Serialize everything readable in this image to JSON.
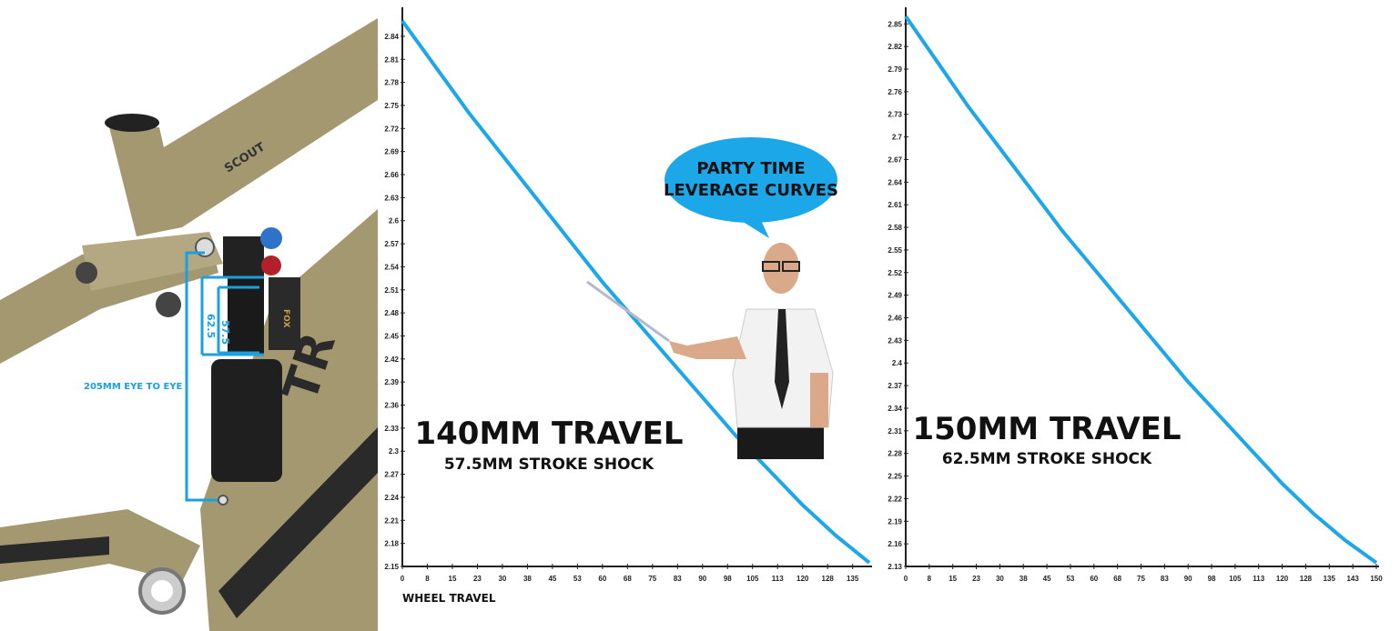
{
  "frame": {
    "eye_to_eye_label": "205MM EYE TO EYE",
    "stroke_long_label": "62.5",
    "stroke_short_label": "57.5",
    "downtube_text": "TR",
    "toptube_text": "SCOUT",
    "shock_brand": "FOX",
    "frame_color": "#a39870",
    "accent_color": "#1a9fe0"
  },
  "callout": {
    "line1": "PARTY TIME",
    "line2": "LEVERAGE CURVES",
    "bubble_color": "#1ba7e8"
  },
  "chart_data": [
    {
      "type": "line",
      "headline": "140MM TRAVEL",
      "subheadline": "57.5MM STROKE SHOCK",
      "xlabel": "WHEEL TRAVEL",
      "ylabel": "",
      "xlim": [
        0,
        140
      ],
      "ylim": [
        2.15,
        2.86
      ],
      "x_ticks": [
        "0",
        "8",
        "15",
        "23",
        "30",
        "38",
        "45",
        "53",
        "60",
        "68",
        "75",
        "83",
        "90",
        "98",
        "105",
        "113",
        "120",
        "128",
        "135"
      ],
      "y_ticks": [
        "2.84",
        "2.81",
        "2.78",
        "2.75",
        "2.72",
        "2.69",
        "2.66",
        "2.63",
        "2.6",
        "2.57",
        "2.54",
        "2.51",
        "2.48",
        "2.45",
        "2.42",
        "2.39",
        "2.36",
        "2.33",
        "2.3",
        "2.27",
        "2.24",
        "2.21",
        "2.18",
        "2.15"
      ],
      "x": [
        0,
        10,
        20,
        30,
        40,
        50,
        60,
        70,
        80,
        90,
        100,
        110,
        120,
        130,
        140
      ],
      "y": [
        2.86,
        2.8,
        2.74,
        2.685,
        2.63,
        2.575,
        2.52,
        2.47,
        2.42,
        2.37,
        2.32,
        2.275,
        2.23,
        2.19,
        2.155
      ],
      "line_color": "#1ba7e8",
      "grid": false
    },
    {
      "type": "line",
      "headline": "150MM TRAVEL",
      "subheadline": "62.5MM STROKE SHOCK",
      "xlabel": "",
      "ylabel": "",
      "xlim": [
        0,
        150
      ],
      "ylim": [
        2.13,
        2.86
      ],
      "x_ticks": [
        "0",
        "8",
        "15",
        "23",
        "30",
        "38",
        "45",
        "53",
        "60",
        "68",
        "75",
        "83",
        "90",
        "98",
        "105",
        "113",
        "120",
        "128",
        "135",
        "143",
        "150"
      ],
      "y_ticks": [
        "2.85",
        "2.82",
        "2.79",
        "2.76",
        "2.73",
        "2.7",
        "2.67",
        "2.64",
        "2.61",
        "2.58",
        "2.55",
        "2.52",
        "2.49",
        "2.46",
        "2.43",
        "2.4",
        "2.37",
        "2.34",
        "2.31",
        "2.28",
        "2.25",
        "2.22",
        "2.19",
        "2.16",
        "2.13"
      ],
      "x": [
        0,
        10,
        20,
        30,
        40,
        50,
        60,
        70,
        80,
        90,
        100,
        110,
        120,
        130,
        140,
        150
      ],
      "y": [
        2.86,
        2.8,
        2.74,
        2.685,
        2.63,
        2.575,
        2.525,
        2.475,
        2.425,
        2.375,
        2.33,
        2.285,
        2.24,
        2.2,
        2.165,
        2.135
      ],
      "line_color": "#1ba7e8",
      "grid": false
    }
  ]
}
